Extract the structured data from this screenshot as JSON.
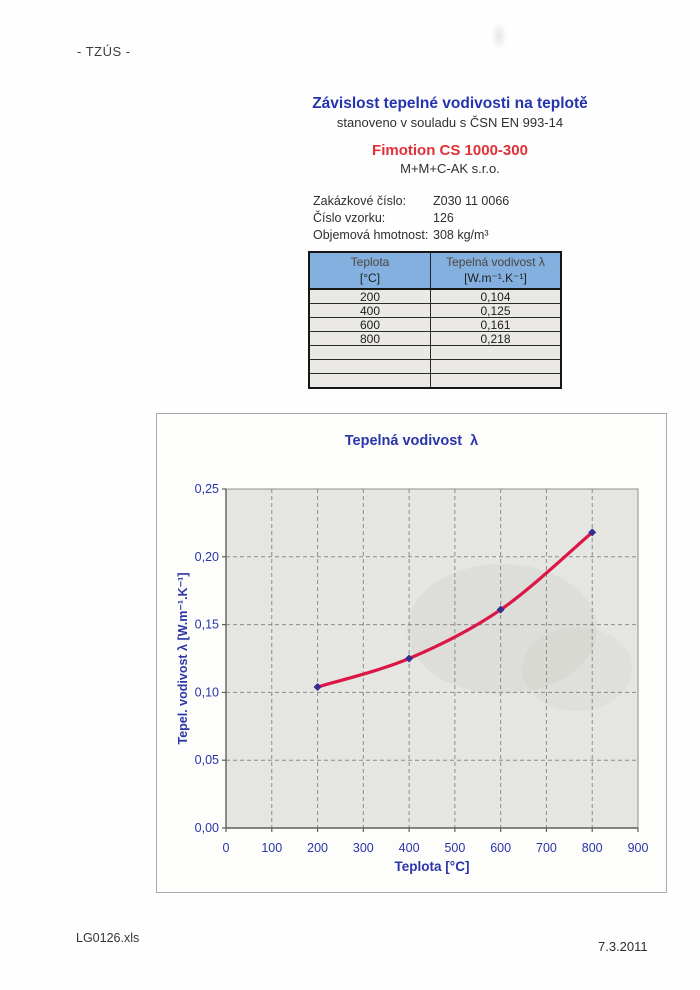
{
  "page": {
    "mark": "- TZÚS -",
    "footer_file": "LG0126.xls",
    "footer_date": "7.3.2011"
  },
  "header": {
    "title": "Závislost tepelné vodivosti na teplotě",
    "subtitle": "stanoveno v souladu s ČSN EN 993-14",
    "product": "Fimotion CS 1000-300",
    "company": "M+M+C-AK s.r.o."
  },
  "fields": [
    {
      "label": "Zakázkové číslo:",
      "value": "Z030 11 0066"
    },
    {
      "label": "Číslo vzorku:",
      "value": "126"
    },
    {
      "label": "Objemová hmotnost:",
      "value": "308 kg/m³"
    }
  ],
  "table": {
    "columns": [
      {
        "line1": "Teplota",
        "line2": "[°C]"
      },
      {
        "line1": "Tepelná vodivost λ",
        "line2": "[W.m⁻¹.K⁻¹]"
      }
    ],
    "rows": [
      [
        "200",
        "0,104"
      ],
      [
        "400",
        "0,125"
      ],
      [
        "600",
        "0,161"
      ],
      [
        "800",
        "0,218"
      ]
    ],
    "empty_rows": 3,
    "header_bg": "#84b0e0"
  },
  "chart_data": {
    "type": "line",
    "title": "Tepelná vodivost  λ",
    "xlabel": "Teplota [°C]",
    "ylabel": "Tepel. vodivost λ [W.m⁻¹.K⁻¹]",
    "x": [
      200,
      400,
      600,
      800
    ],
    "y": [
      0.104,
      0.125,
      0.161,
      0.218
    ],
    "xlim": [
      0,
      900
    ],
    "ylim": [
      0,
      0.25
    ],
    "xticks": [
      0,
      100,
      200,
      300,
      400,
      500,
      600,
      700,
      800,
      900
    ],
    "xtick_labels": [
      "0",
      "100",
      "200",
      "300",
      "400",
      "500",
      "600",
      "700",
      "800",
      "900"
    ],
    "yticks": [
      0,
      0.05,
      0.1,
      0.15,
      0.2,
      0.25
    ],
    "ytick_labels": [
      "0,00",
      "0,05",
      "0,10",
      "0,15",
      "0,20",
      "0,25"
    ],
    "grid": true,
    "legend": "none",
    "line_color": "#dc1747",
    "marker_color": "#32308c",
    "plot_bg": "#e5e5e2",
    "label_color": "#2a35a8"
  },
  "colors": {
    "title_blue": "#2433ae",
    "product_red": "#e03038",
    "chart_blue": "#2a35a8"
  }
}
